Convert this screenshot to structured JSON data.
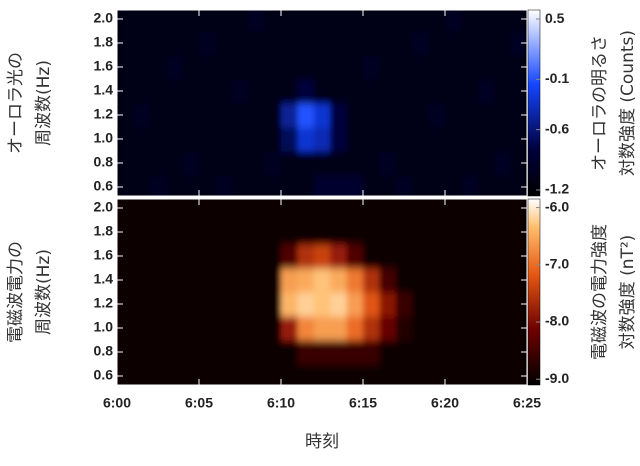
{
  "chart_data": [
    {
      "type": "heatmap",
      "ylabel": [
        "オーロラ光の",
        "周波数(Hz)"
      ],
      "colorbar_label": [
        "オーロラの明るさ",
        "対数強度 (Counts)"
      ],
      "xlim": [
        0,
        25
      ],
      "xticks": [
        0,
        5,
        10,
        15,
        20,
        25
      ],
      "ylim": [
        0.525,
        2.075
      ],
      "yticks": [
        0.6,
        0.8,
        {
          "value": 1,
          "label": "1.0"
        },
        1.2,
        1.4,
        1.6,
        1.8,
        {
          "value": 2,
          "label": "2.0"
        }
      ],
      "clim": [
        -1.26,
        0.59
      ],
      "cticks": [
        0.5,
        -0.1,
        -0.6,
        -1.2
      ],
      "colormap": "blue",
      "x": [
        0.5,
        1.5,
        2.5,
        3.5,
        4.5,
        5.5,
        6.5,
        7.5,
        8.5,
        9.5,
        10.5,
        11.5,
        12.5,
        13.5,
        14.5,
        15.5,
        16.5,
        17.5,
        18.5,
        19.5,
        20.5,
        21.5,
        22.5,
        23.5,
        24.5
      ],
      "y": [
        0.6,
        0.8,
        1,
        1.2,
        1.4,
        1.6,
        1.8,
        2
      ],
      "z": [
        [
          -1.1,
          -1.1,
          -1.0,
          -1.1,
          -1.1,
          -1.1,
          -1.0,
          -1.1,
          -1.1,
          -1.1,
          -1.1,
          -1.1,
          -0.9,
          -0.9,
          -0.9,
          -1.1,
          -1.1,
          -1.0,
          -1.1,
          -1.1,
          -1.1,
          -1.0,
          -1.1,
          -1.1,
          -1.1
        ],
        [
          -1.1,
          -1.1,
          -1.1,
          -1.1,
          -1.0,
          -1.1,
          -1.1,
          -1.1,
          -1.1,
          -1.0,
          -1.1,
          -1.1,
          -1.1,
          -1.1,
          -1.1,
          -1.1,
          -1.0,
          -1.1,
          -1.1,
          -1.1,
          -1.1,
          -1.1,
          -1.1,
          -1.0,
          -1.1
        ],
        [
          -1.1,
          -1.1,
          -1.1,
          -1.1,
          -1.1,
          -1.1,
          -1.1,
          -1.1,
          -1.1,
          -1.1,
          -0.7,
          -0.3,
          -0.4,
          -0.8,
          -1.1,
          -1.1,
          -1.1,
          -1.1,
          -1.1,
          -1.1,
          -1.1,
          -1.1,
          -1.1,
          -1.1,
          -1.1
        ],
        [
          -1.1,
          -1.0,
          -1.1,
          -1.1,
          -1.1,
          -1.1,
          -1.1,
          -1.1,
          -1.1,
          -1.1,
          -0.5,
          -0.1,
          -0.3,
          -0.8,
          -1.1,
          -1.1,
          -1.1,
          -1.1,
          -1.1,
          -1.0,
          -1.1,
          -1.1,
          -1.1,
          -1.1,
          -1.1
        ],
        [
          -1.1,
          -1.1,
          -1.1,
          -1.1,
          -1.1,
          -1.1,
          -1.1,
          -1.0,
          -1.1,
          -1.1,
          -1.1,
          -0.8,
          -1.1,
          -1.1,
          -1.1,
          -1.1,
          -1.1,
          -1.1,
          -1.1,
          -1.1,
          -1.1,
          -1.1,
          -1.0,
          -1.1,
          -1.1
        ],
        [
          -1.1,
          -1.1,
          -1.1,
          -1.0,
          -1.1,
          -1.1,
          -1.1,
          -1.1,
          -1.1,
          -1.1,
          -1.1,
          -1.1,
          -1.1,
          -1.1,
          -1.1,
          -1.0,
          -1.1,
          -1.1,
          -1.1,
          -1.1,
          -1.1,
          -1.1,
          -1.1,
          -1.1,
          -1.1
        ],
        [
          -1.1,
          -1.1,
          -1.1,
          -1.1,
          -1.1,
          -1.0,
          -1.1,
          -1.1,
          -1.1,
          -1.1,
          -1.1,
          -1.1,
          -1.1,
          -1.1,
          -1.1,
          -1.1,
          -1.1,
          -1.1,
          -1.0,
          -1.1,
          -1.1,
          -1.1,
          -1.1,
          -1.1,
          -1.0
        ],
        [
          -1.1,
          -1.1,
          -1.1,
          -1.1,
          -1.1,
          -1.1,
          -1.1,
          -1.1,
          -1.0,
          -1.1,
          -1.1,
          -1.1,
          -1.1,
          -1.1,
          -1.1,
          -1.1,
          -1.1,
          -1.1,
          -1.1,
          -1.1,
          -1.0,
          -1.1,
          -1.1,
          -1.1,
          -1.1
        ]
      ]
    },
    {
      "type": "heatmap",
      "ylabel": [
        "電磁波電力の",
        "周波数(Hz)"
      ],
      "colorbar_label": [
        "電磁波の電力強度",
        "対数強度 (nT²)"
      ],
      "xlabel": "時刻",
      "xlim": [
        0,
        25
      ],
      "xticks": [
        {
          "value": 0,
          "label": "6:00"
        },
        {
          "value": 5,
          "label": "6:05"
        },
        {
          "value": 10,
          "label": "6:10"
        },
        {
          "value": 15,
          "label": "6:15"
        },
        {
          "value": 20,
          "label": "6:20"
        },
        {
          "value": 25,
          "label": "6:25"
        }
      ],
      "ylim": [
        0.525,
        2.075
      ],
      "yticks": [
        0.6,
        0.8,
        {
          "value": 1,
          "label": "1.0"
        },
        1.2,
        1.4,
        1.6,
        1.8,
        {
          "value": 2,
          "label": "2.0"
        }
      ],
      "clim": [
        -9.1,
        -5.85
      ],
      "cticks": [
        {
          "value": -6,
          "label": "-6.0"
        },
        {
          "value": -7,
          "label": "-7.0"
        },
        {
          "value": -8,
          "label": "-8.0"
        },
        {
          "value": -9,
          "label": "-9.0"
        }
      ],
      "colormap": "hot",
      "x": [
        0.5,
        1.5,
        2.5,
        3.5,
        4.5,
        5.5,
        6.5,
        7.5,
        8.5,
        9.5,
        10.5,
        11.5,
        12.5,
        13.5,
        14.5,
        15.5,
        16.5,
        17.5,
        18.5,
        19.5,
        20.5,
        21.5,
        22.5,
        23.5,
        24.5
      ],
      "y": [
        0.6,
        0.8,
        1,
        1.2,
        1.4,
        1.6,
        1.8,
        2
      ],
      "z": [
        [
          -9.0,
          -9.0,
          -9.0,
          -9.0,
          -9.0,
          -9.0,
          -9.0,
          -9.0,
          -9.0,
          -9.0,
          -9.0,
          -9.0,
          -9.0,
          -9.0,
          -9.0,
          -9.0,
          -9.0,
          -9.0,
          -9.0,
          -9.0,
          -9.0,
          -9.0,
          -9.0,
          -9.0,
          -9.0
        ],
        [
          -9.0,
          -9.0,
          -9.0,
          -9.0,
          -9.0,
          -9.0,
          -9.0,
          -9.0,
          -9.0,
          -9.0,
          -9.0,
          -8.6,
          -8.6,
          -8.6,
          -8.6,
          -8.6,
          -9.0,
          -9.0,
          -9.0,
          -9.0,
          -9.0,
          -9.0,
          -9.0,
          -9.0,
          -9.0
        ],
        [
          -9.0,
          -9.0,
          -9.0,
          -9.0,
          -9.0,
          -9.0,
          -9.0,
          -9.0,
          -9.0,
          -9.0,
          -7.8,
          -6.8,
          -6.6,
          -6.6,
          -7.0,
          -7.6,
          -8.2,
          -8.8,
          -9.0,
          -9.0,
          -9.0,
          -9.0,
          -9.0,
          -9.0,
          -9.0
        ],
        [
          -9.0,
          -9.0,
          -9.0,
          -9.0,
          -9.0,
          -9.0,
          -9.0,
          -9.0,
          -9.0,
          -9.0,
          -6.4,
          -6.2,
          -6.3,
          -6.2,
          -6.6,
          -7.2,
          -7.9,
          -8.6,
          -9.0,
          -9.0,
          -9.0,
          -9.0,
          -9.0,
          -9.0,
          -9.0
        ],
        [
          -9.0,
          -9.0,
          -9.0,
          -9.0,
          -9.0,
          -9.0,
          -9.0,
          -9.0,
          -9.0,
          -9.0,
          -6.6,
          -6.5,
          -6.3,
          -6.5,
          -6.9,
          -7.6,
          -8.5,
          -9.0,
          -9.0,
          -9.0,
          -9.0,
          -9.0,
          -9.0,
          -9.0,
          -9.0
        ],
        [
          -9.0,
          -9.0,
          -9.0,
          -9.0,
          -9.0,
          -9.0,
          -9.0,
          -9.0,
          -9.0,
          -9.0,
          -8.4,
          -7.6,
          -7.4,
          -7.8,
          -8.4,
          -9.0,
          -9.0,
          -9.0,
          -9.0,
          -9.0,
          -9.0,
          -9.0,
          -9.0,
          -9.0,
          -9.0
        ],
        [
          -9.0,
          -9.0,
          -9.0,
          -9.0,
          -9.0,
          -9.0,
          -9.0,
          -9.0,
          -9.0,
          -9.0,
          -9.0,
          -9.0,
          -9.0,
          -9.0,
          -9.0,
          -9.0,
          -9.0,
          -9.0,
          -9.0,
          -9.0,
          -9.0,
          -9.0,
          -9.0,
          -9.0,
          -9.0
        ],
        [
          -9.0,
          -9.0,
          -9.0,
          -9.0,
          -9.0,
          -9.0,
          -9.0,
          -9.0,
          -9.0,
          -9.0,
          -9.0,
          -9.0,
          -9.0,
          -9.0,
          -9.0,
          -9.0,
          -9.0,
          -9.0,
          -9.0,
          -9.0,
          -9.0,
          -9.0,
          -9.0,
          -9.0,
          -9.0
        ]
      ]
    }
  ]
}
